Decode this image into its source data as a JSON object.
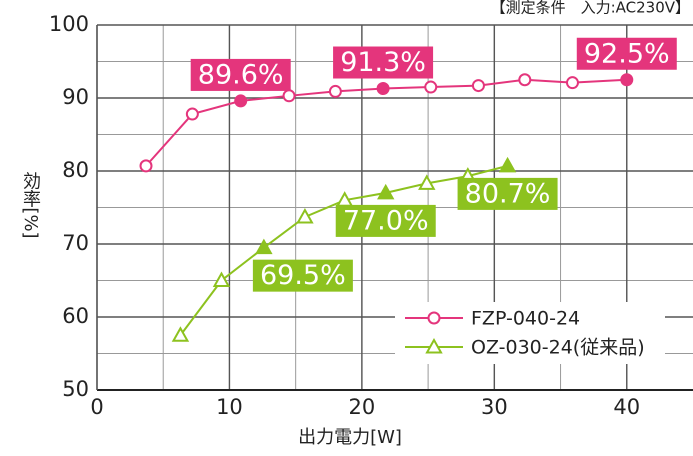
{
  "chart_data": {
    "type": "line",
    "title": "【測定条件　入力:AC230V】",
    "xlabel": "出力電力[W]",
    "ylabel": "効率[%]",
    "xlim": [
      0,
      45
    ],
    "ylim": [
      50,
      100
    ],
    "xticks": [
      0,
      10,
      20,
      30,
      40
    ],
    "yticks": [
      50,
      60,
      70,
      80,
      90,
      100
    ],
    "xgrid": [
      5,
      10,
      15,
      20,
      25,
      30,
      35,
      40
    ],
    "ygrid": [
      55,
      60,
      65,
      70,
      75,
      80,
      85,
      90,
      95
    ],
    "grid": true,
    "legend": "lower right",
    "series": [
      {
        "name": "FZP-040-24",
        "color": "#e4357c",
        "marker": "circle",
        "x": [
          3.7,
          7.2,
          10.85,
          14.5,
          18,
          21.6,
          25.2,
          28.8,
          32.3,
          35.9,
          40
        ],
        "values": [
          80.7,
          87.8,
          89.6,
          90.3,
          90.9,
          91.3,
          91.5,
          91.7,
          92.5,
          92.1,
          92.5
        ],
        "value_labels": [
          null,
          null,
          "89.6%",
          null,
          null,
          "91.3%",
          null,
          null,
          null,
          null,
          "92.5%"
        ]
      },
      {
        "name": "OZ-030-24(従来品)",
        "color": "#8dc21f",
        "marker": "triangle",
        "x": [
          6.3,
          9.4,
          12.6,
          15.7,
          18.7,
          21.8,
          24.9,
          28,
          31
        ],
        "values": [
          57.5,
          65,
          69.5,
          73.7,
          76,
          77,
          78.3,
          79.3,
          80.7
        ],
        "value_labels": [
          null,
          null,
          "69.5%",
          null,
          null,
          "77.0%",
          null,
          null,
          "80.7%"
        ]
      }
    ]
  }
}
